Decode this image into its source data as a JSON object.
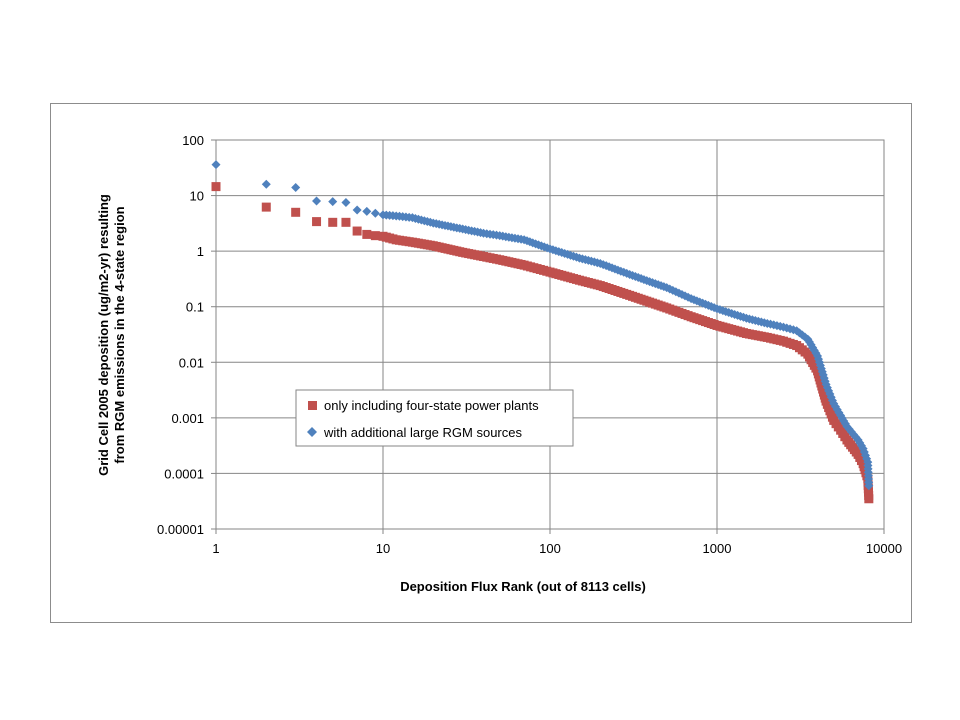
{
  "chart_data": {
    "type": "scatter",
    "title": "",
    "xlabel": "Deposition Flux Rank (out of 8113 cells)",
    "ylabel_lines": [
      "Grid Cell 2005 deposition (ug/m2-yr) resulting",
      "from RGM emissions in the 4-state region"
    ],
    "x_scale": "log",
    "y_scale": "log",
    "xlim": [
      1,
      10000
    ],
    "ylim": [
      1e-05,
      100
    ],
    "x_ticks": [
      1,
      10,
      100,
      1000,
      10000
    ],
    "x_tick_labels": [
      "1",
      "10",
      "100",
      "1000",
      "10000"
    ],
    "y_ticks": [
      100,
      10,
      1,
      0.1,
      0.01,
      0.001,
      0.0001,
      1e-05
    ],
    "y_tick_labels": [
      "100",
      "10",
      "1",
      "0.1",
      "0.01",
      "0.001",
      "0.0001",
      "0.00001"
    ],
    "grid": "major",
    "legend_position": "center-left",
    "series": [
      {
        "name": "only including four-state power plants",
        "color": "#c0504d",
        "marker": "square",
        "points": [
          [
            1,
            14.5
          ],
          [
            2,
            6.2
          ],
          [
            3,
            5.0
          ],
          [
            4,
            3.4
          ],
          [
            5,
            3.3
          ],
          [
            6,
            3.3
          ],
          [
            7,
            2.3
          ],
          [
            8,
            2.0
          ],
          [
            9,
            1.9
          ],
          [
            10,
            1.85
          ],
          [
            12,
            1.6
          ],
          [
            15,
            1.45
          ],
          [
            20,
            1.25
          ],
          [
            30,
            0.95
          ],
          [
            40,
            0.8
          ],
          [
            50,
            0.7
          ],
          [
            70,
            0.56
          ],
          [
            100,
            0.42
          ],
          [
            150,
            0.3
          ],
          [
            200,
            0.24
          ],
          [
            300,
            0.16
          ],
          [
            500,
            0.095
          ],
          [
            700,
            0.066
          ],
          [
            1000,
            0.046
          ],
          [
            1500,
            0.033
          ],
          [
            2000,
            0.028
          ],
          [
            2500,
            0.024
          ],
          [
            3000,
            0.02
          ],
          [
            3500,
            0.014
          ],
          [
            4000,
            0.007
          ],
          [
            4500,
            0.002
          ],
          [
            5000,
            0.0009
          ],
          [
            5500,
            0.0006
          ],
          [
            6000,
            0.0004
          ],
          [
            7000,
            0.00022
          ],
          [
            7500,
            0.00015
          ],
          [
            8000,
            8e-05
          ],
          [
            8113,
            3.5e-05
          ]
        ]
      },
      {
        "name": "with additional large RGM sources",
        "color": "#4f81bd",
        "marker": "diamond",
        "points": [
          [
            1,
            36
          ],
          [
            2,
            16
          ],
          [
            3,
            14
          ],
          [
            4,
            8
          ],
          [
            5,
            7.8
          ],
          [
            6,
            7.5
          ],
          [
            7,
            5.5
          ],
          [
            8,
            5.2
          ],
          [
            9,
            4.8
          ],
          [
            10,
            4.5
          ],
          [
            12,
            4.3
          ],
          [
            15,
            4.0
          ],
          [
            20,
            3.2
          ],
          [
            30,
            2.5
          ],
          [
            40,
            2.1
          ],
          [
            50,
            1.9
          ],
          [
            70,
            1.6
          ],
          [
            100,
            1.1
          ],
          [
            150,
            0.75
          ],
          [
            200,
            0.6
          ],
          [
            300,
            0.38
          ],
          [
            500,
            0.22
          ],
          [
            700,
            0.14
          ],
          [
            1000,
            0.092
          ],
          [
            1500,
            0.062
          ],
          [
            2000,
            0.05
          ],
          [
            2500,
            0.043
          ],
          [
            3000,
            0.037
          ],
          [
            3500,
            0.026
          ],
          [
            4000,
            0.013
          ],
          [
            4500,
            0.004
          ],
          [
            5000,
            0.0018
          ],
          [
            5500,
            0.0011
          ],
          [
            6000,
            0.0007
          ],
          [
            7000,
            0.0004
          ],
          [
            7500,
            0.00028
          ],
          [
            8000,
            0.00016
          ],
          [
            8113,
            6e-05
          ]
        ]
      }
    ]
  }
}
